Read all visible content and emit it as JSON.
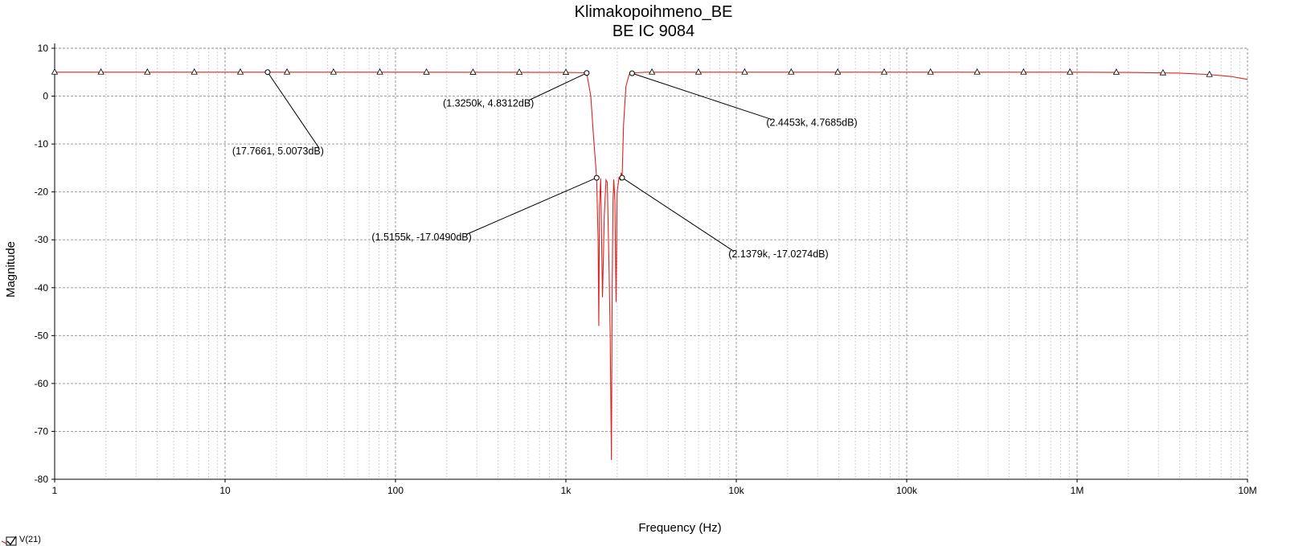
{
  "chart_data": {
    "type": "line",
    "title": "Klimakopoihmeno_BE",
    "subtitle": "BE IC 9084",
    "xlabel": "Frequency (Hz)",
    "ylabel": "Magnitude",
    "x_scale": "log",
    "xlim": [
      1,
      10000000
    ],
    "ylim": [
      -80,
      10
    ],
    "x_ticks": [
      {
        "value": 1,
        "label": "1"
      },
      {
        "value": 10,
        "label": "10"
      },
      {
        "value": 100,
        "label": "100"
      },
      {
        "value": 1000,
        "label": "1k"
      },
      {
        "value": 10000,
        "label": "10k"
      },
      {
        "value": 100000,
        "label": "100k"
      },
      {
        "value": 1000000,
        "label": "1M"
      },
      {
        "value": 10000000,
        "label": "10M"
      }
    ],
    "y_ticks": [
      {
        "value": 10,
        "label": "10"
      },
      {
        "value": 0,
        "label": "0"
      },
      {
        "value": -10,
        "label": "-10"
      },
      {
        "value": -20,
        "label": "-20"
      },
      {
        "value": -30,
        "label": "-30"
      },
      {
        "value": -40,
        "label": "-40"
      },
      {
        "value": -50,
        "label": "-50"
      },
      {
        "value": -60,
        "label": "-60"
      },
      {
        "value": -70,
        "label": "-70"
      },
      {
        "value": -80,
        "label": "-80"
      }
    ],
    "grid": true,
    "legend_position": "bottom-left",
    "series": [
      {
        "name": "V(21)",
        "color": "#e02020",
        "marker": "triangle",
        "x": [
          1,
          10,
          100,
          1000,
          1250,
          1325,
          1400,
          1450,
          1500,
          1515,
          1545,
          1560,
          1575,
          1600,
          1640,
          1680,
          1720,
          1750,
          1790,
          1820,
          1850,
          1870,
          1890,
          1910,
          1940,
          1970,
          2000,
          2050,
          2090,
          2110,
          2138,
          2180,
          2250,
          2350,
          2445,
          2600,
          3000,
          5000,
          10000,
          100000,
          1000000,
          2000000,
          4000000,
          6000000,
          8000000,
          10000000
        ],
        "y": [
          5.0,
          5.0,
          5.0,
          4.95,
          4.9,
          4.83,
          0.0,
          -8.0,
          -15.0,
          -17.05,
          -30.0,
          -48.0,
          -23.0,
          -17.2,
          -42.0,
          -25.0,
          -17.5,
          -18.0,
          -35.0,
          -50.0,
          -76.0,
          -40.0,
          -22.0,
          -17.4,
          -22.0,
          -43.0,
          -20.0,
          -17.03,
          -17.5,
          -16.0,
          -17.03,
          -6.0,
          2.0,
          4.5,
          4.77,
          4.9,
          5.0,
          5.0,
          5.0,
          5.0,
          5.0,
          4.95,
          4.8,
          4.5,
          4.1,
          3.5
        ]
      }
    ],
    "marker_points": [
      {
        "x": 1
      },
      {
        "x": 1.87
      },
      {
        "x": 3.5
      },
      {
        "x": 6.6
      },
      {
        "x": 12.3
      },
      {
        "x": 23.1
      },
      {
        "x": 43.3
      },
      {
        "x": 81
      },
      {
        "x": 152
      },
      {
        "x": 285
      },
      {
        "x": 533
      },
      {
        "x": 1000
      },
      {
        "x": 3200
      },
      {
        "x": 6000
      },
      {
        "x": 11200
      },
      {
        "x": 21000
      },
      {
        "x": 39400
      },
      {
        "x": 73800
      },
      {
        "x": 138000
      },
      {
        "x": 259000
      },
      {
        "x": 485000
      },
      {
        "x": 908000
      },
      {
        "x": 1700000
      },
      {
        "x": 3190000
      },
      {
        "x": 5980000
      }
    ],
    "annotations": [
      {
        "label": "(17.7661, 5.0073dB)",
        "x": 17.7661,
        "y": 5.0073,
        "text_anchor": "end",
        "text_x": 38,
        "text_y": -11.5
      },
      {
        "label": "(1.3250k, 4.8312dB)",
        "x": 1325,
        "y": 4.8312,
        "text_anchor": "end",
        "text_x": 650,
        "text_y": -1.5
      },
      {
        "label": "(2.4453k, 4.7685dB)",
        "x": 2445.3,
        "y": 4.7685,
        "text_anchor": "start",
        "text_x": 15000,
        "text_y": -5.5
      },
      {
        "label": "(1.5155k, -17.0490dB)",
        "x": 1515.5,
        "y": -17.049,
        "text_anchor": "end",
        "text_x": 280,
        "text_y": -29.5
      },
      {
        "label": "(2.1379k, -17.0274dB)",
        "x": 2137.9,
        "y": -17.0274,
        "text_anchor": "start",
        "text_x": 9000,
        "text_y": -33
      }
    ]
  }
}
